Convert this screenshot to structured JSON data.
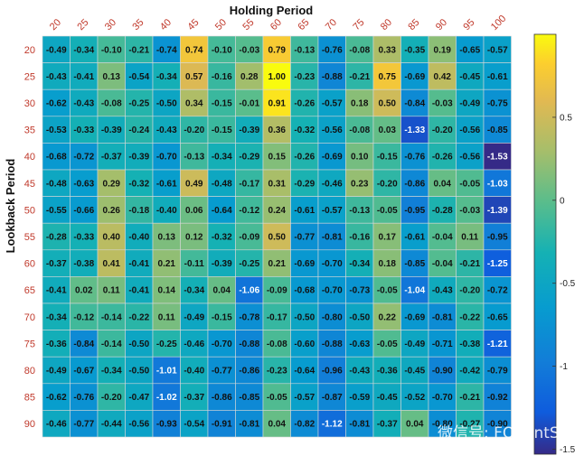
{
  "chart_data": {
    "type": "heatmap",
    "xlabel": "Holding Period",
    "ylabel": "Lookback Period",
    "x_categories": [
      "20",
      "25",
      "30",
      "35",
      "40",
      "45",
      "50",
      "55",
      "60",
      "65",
      "70",
      "75",
      "80",
      "85",
      "90",
      "95",
      "100"
    ],
    "y_categories": [
      "20",
      "25",
      "30",
      "35",
      "40",
      "45",
      "50",
      "55",
      "60",
      "65",
      "70",
      "75",
      "80",
      "85",
      "90"
    ],
    "values": [
      [
        -0.49,
        -0.34,
        -0.1,
        -0.21,
        -0.74,
        0.74,
        -0.1,
        -0.03,
        0.79,
        -0.13,
        -0.76,
        -0.08,
        0.33,
        -0.35,
        0.19,
        -0.65,
        -0.57
      ],
      [
        -0.43,
        -0.41,
        0.13,
        -0.54,
        -0.34,
        0.57,
        -0.16,
        0.28,
        1.0,
        -0.23,
        -0.88,
        -0.21,
        0.75,
        -0.69,
        0.42,
        -0.45,
        -0.61
      ],
      [
        -0.62,
        -0.43,
        -0.08,
        -0.25,
        -0.5,
        0.34,
        -0.15,
        -0.01,
        0.91,
        -0.26,
        -0.57,
        0.18,
        0.5,
        -0.84,
        -0.03,
        -0.49,
        -0.75
      ],
      [
        -0.53,
        -0.33,
        -0.39,
        -0.24,
        -0.43,
        -0.2,
        -0.15,
        -0.39,
        0.36,
        -0.32,
        -0.56,
        -0.08,
        0.03,
        -1.33,
        -0.2,
        -0.56,
        -0.85
      ],
      [
        -0.68,
        -0.72,
        -0.37,
        -0.39,
        -0.7,
        -0.13,
        -0.34,
        -0.29,
        0.15,
        -0.26,
        -0.69,
        0.1,
        -0.15,
        -0.76,
        -0.26,
        -0.56,
        -1.53
      ],
      [
        -0.48,
        -0.63,
        0.29,
        -0.32,
        -0.61,
        0.49,
        -0.48,
        -0.17,
        0.31,
        -0.29,
        -0.46,
        0.23,
        -0.2,
        -0.86,
        0.04,
        -0.05,
        -1.03
      ],
      [
        -0.55,
        -0.66,
        0.26,
        -0.18,
        -0.4,
        0.06,
        -0.64,
        -0.12,
        0.24,
        -0.61,
        -0.57,
        -0.13,
        -0.05,
        -0.95,
        -0.28,
        -0.03,
        -1.39
      ],
      [
        -0.28,
        -0.33,
        0.4,
        -0.4,
        0.13,
        0.12,
        -0.32,
        -0.09,
        0.5,
        -0.77,
        -0.81,
        -0.16,
        0.17,
        -0.61,
        -0.04,
        0.11,
        -0.95
      ],
      [
        -0.37,
        -0.38,
        0.41,
        -0.41,
        0.21,
        -0.11,
        -0.39,
        -0.25,
        0.21,
        -0.69,
        -0.7,
        -0.34,
        0.18,
        -0.85,
        -0.04,
        -0.21,
        -1.25
      ],
      [
        -0.41,
        0.02,
        0.11,
        -0.41,
        0.14,
        -0.34,
        0.04,
        -1.06,
        -0.09,
        -0.68,
        -0.7,
        -0.73,
        -0.05,
        -1.04,
        -0.43,
        -0.2,
        -0.72
      ],
      [
        -0.34,
        -0.12,
        -0.14,
        -0.22,
        0.11,
        -0.49,
        -0.15,
        -0.78,
        -0.17,
        -0.5,
        -0.8,
        -0.5,
        0.22,
        -0.69,
        -0.81,
        -0.22,
        -0.65
      ],
      [
        -0.36,
        -0.84,
        -0.14,
        -0.5,
        -0.25,
        -0.46,
        -0.7,
        -0.88,
        -0.08,
        -0.6,
        -0.88,
        -0.63,
        -0.05,
        -0.49,
        -0.71,
        -0.38,
        -1.21
      ],
      [
        -0.49,
        -0.67,
        -0.34,
        -0.5,
        -1.01,
        -0.4,
        -0.77,
        -0.86,
        -0.23,
        -0.64,
        -0.96,
        -0.43,
        -0.36,
        -0.45,
        -0.9,
        -0.42,
        -0.79
      ],
      [
        -0.62,
        -0.76,
        -0.2,
        -0.47,
        -1.02,
        -0.37,
        -0.86,
        -0.85,
        -0.05,
        -0.57,
        -0.87,
        -0.59,
        -0.45,
        -0.52,
        -0.7,
        -0.21,
        -0.92
      ],
      [
        -0.46,
        -0.77,
        -0.44,
        -0.56,
        -0.93,
        -0.54,
        -0.91,
        -0.81,
        0.04,
        -0.82,
        -1.12,
        -0.81,
        -0.37,
        0.04,
        -0.8,
        -0.27,
        -0.9
      ]
    ],
    "value_range": [
      -1.53,
      1.0
    ],
    "colormap": "parula",
    "colorbar": {
      "ticks": [
        0.5,
        0,
        -0.5,
        -1,
        -1.5
      ],
      "tick_labels": [
        "0.5",
        "0",
        "-0.5",
        "-1",
        "-1.5"
      ]
    },
    "grid": true,
    "tick_color": "#c0392b"
  },
  "watermark": "微信号: FQuantStudio"
}
